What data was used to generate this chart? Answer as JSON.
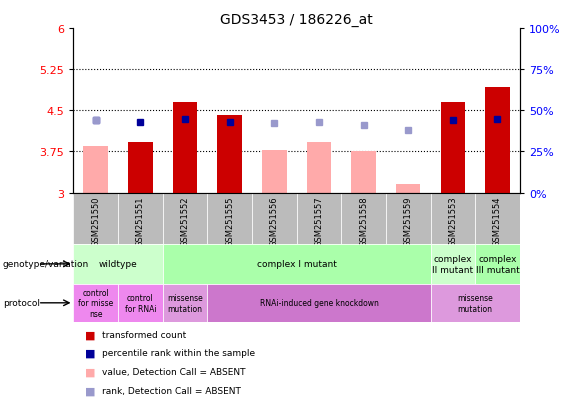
{
  "title": "GDS3453 / 186226_at",
  "samples": [
    "GSM251550",
    "GSM251551",
    "GSM251552",
    "GSM251555",
    "GSM251556",
    "GSM251557",
    "GSM251558",
    "GSM251559",
    "GSM251553",
    "GSM251554"
  ],
  "red_values": [
    3.0,
    3.93,
    4.65,
    4.42,
    3.0,
    3.0,
    3.0,
    3.0,
    4.65,
    4.92
  ],
  "pink_values": [
    3.85,
    3.0,
    3.0,
    3.0,
    3.78,
    3.93,
    3.75,
    3.15,
    3.0,
    3.0
  ],
  "blue_dark_pct": [
    44,
    43,
    45,
    43,
    0,
    0,
    0,
    0,
    44,
    45
  ],
  "blue_light_pct": [
    44,
    0,
    0,
    0,
    42,
    43,
    41,
    38,
    0,
    0
  ],
  "ylim_left": [
    3,
    6
  ],
  "ylim_right": [
    0,
    100
  ],
  "yticks_left": [
    3,
    3.75,
    4.5,
    5.25,
    6
  ],
  "yticks_right": [
    0,
    25,
    50,
    75,
    100
  ],
  "dotted_lines": [
    3.75,
    4.5,
    5.25
  ],
  "red_color": "#cc0000",
  "pink_color": "#ffaaaa",
  "blue_dark": "#000099",
  "blue_light": "#9999cc",
  "plot_bg": "#ffffff",
  "sample_bg": "#bbbbbb",
  "genotype_groups": [
    {
      "label": "wildtype",
      "start": 0,
      "end": 2,
      "color": "#ccffcc"
    },
    {
      "label": "complex I mutant",
      "start": 2,
      "end": 8,
      "color": "#aaffaa"
    },
    {
      "label": "complex\nII mutant",
      "start": 8,
      "end": 9,
      "color": "#ccffcc"
    },
    {
      "label": "complex\nIII mutant",
      "start": 9,
      "end": 10,
      "color": "#aaffaa"
    }
  ],
  "protocol_groups": [
    {
      "label": "control\nfor misse\nnse",
      "start": 0,
      "end": 1,
      "color": "#ee88ee"
    },
    {
      "label": "control\nfor RNAi",
      "start": 1,
      "end": 2,
      "color": "#ee88ee"
    },
    {
      "label": "missense\nmutation",
      "start": 2,
      "end": 3,
      "color": "#dd99dd"
    },
    {
      "label": "RNAi-induced gene knockdown",
      "start": 3,
      "end": 8,
      "color": "#cc77cc"
    },
    {
      "label": "missense\nmutation",
      "start": 8,
      "end": 10,
      "color": "#dd99dd"
    }
  ],
  "legend_items": [
    {
      "color": "#cc0000",
      "label": "transformed count"
    },
    {
      "color": "#000099",
      "label": "percentile rank within the sample"
    },
    {
      "color": "#ffaaaa",
      "label": "value, Detection Call = ABSENT"
    },
    {
      "color": "#9999cc",
      "label": "rank, Detection Call = ABSENT"
    }
  ]
}
